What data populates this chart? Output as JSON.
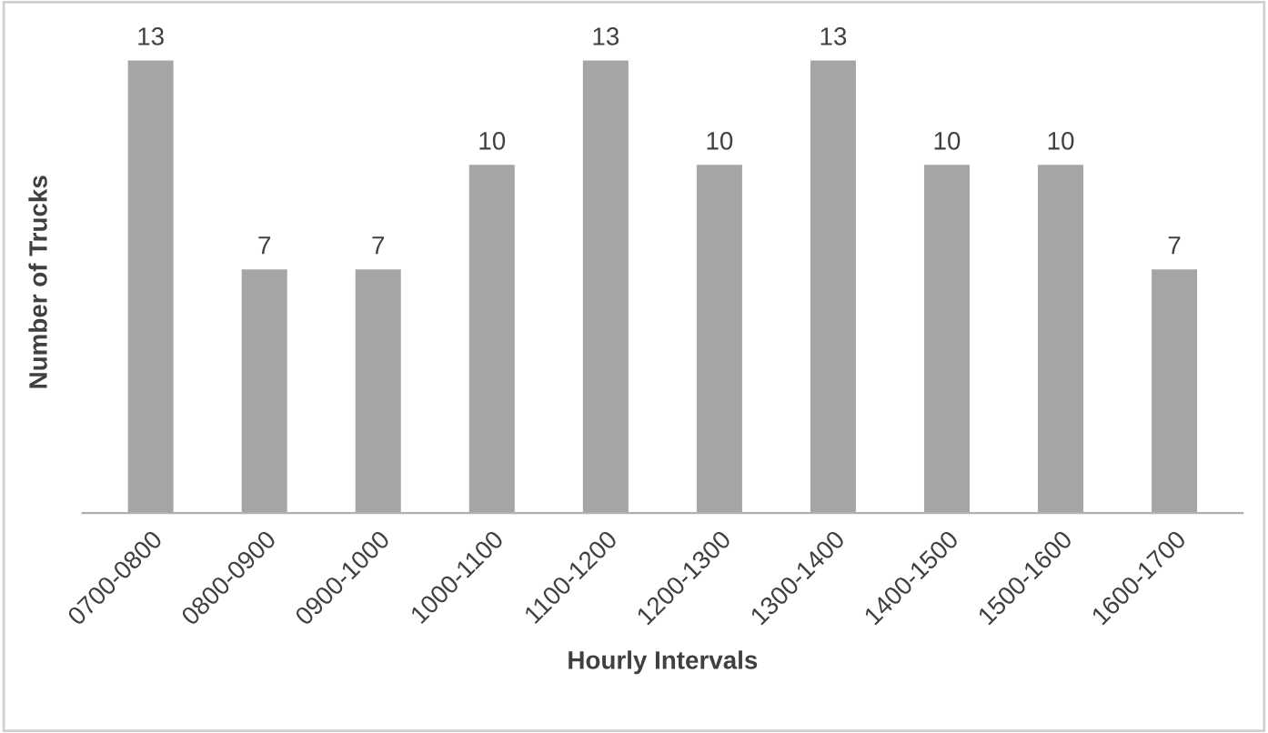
{
  "chart_data": {
    "type": "bar",
    "xlabel": "Hourly Intervals",
    "ylabel": "Number of Trucks",
    "categories": [
      "0700-0800",
      "0800-0900",
      "0900-1000",
      "1000-1100",
      "1100-1200",
      "1200-1300",
      "1300-1400",
      "1400-1500",
      "1500-1600",
      "1600-1700"
    ],
    "values": [
      13,
      7,
      7,
      10,
      13,
      10,
      13,
      10,
      10,
      7
    ],
    "color": "#a5a5a5",
    "data_labels": true
  }
}
